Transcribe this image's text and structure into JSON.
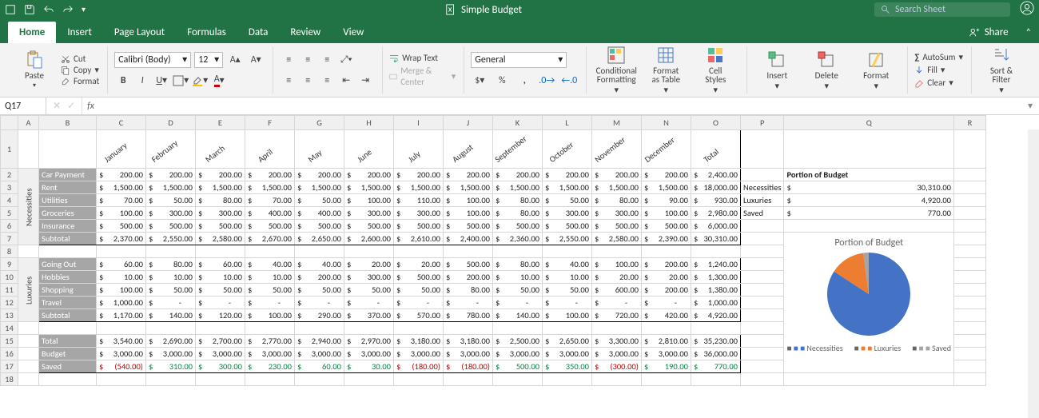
{
  "app": {
    "title": "Simple Budget",
    "search_placeholder": "Search Sheet",
    "active_tab": "Home",
    "tabs": [
      "Home",
      "Insert",
      "Page Layout",
      "Formulas",
      "Data",
      "Review",
      "View"
    ],
    "share_label": "Share",
    "namebox": "Q17",
    "fx": "fx"
  },
  "ribbon": {
    "paste": "Paste",
    "cut": "Cut",
    "copy": "Copy",
    "format": "Format",
    "font_name": "Calibri (Body)",
    "font_size": "12",
    "wrap": "Wrap Text",
    "merge": "Merge & Center",
    "number_format": "General",
    "cond": "Conditional\nFormatting",
    "fmt_table": "Format\nas Table",
    "cell_styles": "Cell\nStyles",
    "insert": "Insert",
    "delete": "Delete",
    "format_btn": "Format",
    "autosum": "AutoSum",
    "fill": "Fill",
    "clear": "Clear",
    "sort": "Sort &\nFilter"
  },
  "months": [
    "January",
    "February",
    "March",
    "April",
    "May",
    "June",
    "July",
    "August",
    "September",
    "October",
    "November",
    "December",
    "Total"
  ],
  "blocks": {
    "necessities_label": "Necessities",
    "luxuries_label": "Luxuries",
    "necessities": [
      {
        "name": "Car Payment",
        "vals": [
          "200.00",
          "200.00",
          "200.00",
          "200.00",
          "200.00",
          "200.00",
          "200.00",
          "200.00",
          "200.00",
          "200.00",
          "200.00",
          "200.00",
          "2,400.00"
        ]
      },
      {
        "name": "Rent",
        "vals": [
          "1,500.00",
          "1,500.00",
          "1,500.00",
          "1,500.00",
          "1,500.00",
          "1,500.00",
          "1,500.00",
          "1,500.00",
          "1,500.00",
          "1,500.00",
          "1,500.00",
          "1,500.00",
          "18,000.00"
        ]
      },
      {
        "name": "Utilities",
        "vals": [
          "70.00",
          "50.00",
          "80.00",
          "70.00",
          "50.00",
          "100.00",
          "110.00",
          "100.00",
          "80.00",
          "50.00",
          "80.00",
          "90.00",
          "930.00"
        ]
      },
      {
        "name": "Groceries",
        "vals": [
          "100.00",
          "300.00",
          "300.00",
          "400.00",
          "400.00",
          "300.00",
          "300.00",
          "100.00",
          "80.00",
          "300.00",
          "300.00",
          "100.00",
          "2,980.00"
        ]
      },
      {
        "name": "Insurance",
        "vals": [
          "500.00",
          "500.00",
          "500.00",
          "500.00",
          "500.00",
          "500.00",
          "500.00",
          "500.00",
          "500.00",
          "500.00",
          "500.00",
          "500.00",
          "6,000.00"
        ]
      }
    ],
    "neces_sub": {
      "name": "Subtotal",
      "vals": [
        "2,370.00",
        "2,550.00",
        "2,580.00",
        "2,670.00",
        "2,650.00",
        "2,600.00",
        "2,610.00",
        "2,400.00",
        "2,360.00",
        "2,550.00",
        "2,580.00",
        "2,390.00",
        "30,310.00"
      ]
    },
    "luxuries": [
      {
        "name": "Going Out",
        "vals": [
          "60.00",
          "80.00",
          "60.00",
          "40.00",
          "40.00",
          "20.00",
          "20.00",
          "500.00",
          "80.00",
          "40.00",
          "100.00",
          "200.00",
          "1,240.00"
        ]
      },
      {
        "name": "Hobbies",
        "vals": [
          "10.00",
          "10.00",
          "10.00",
          "10.00",
          "200.00",
          "300.00",
          "500.00",
          "200.00",
          "10.00",
          "10.00",
          "20.00",
          "20.00",
          "1,300.00"
        ]
      },
      {
        "name": "Shopping",
        "vals": [
          "100.00",
          "50.00",
          "50.00",
          "50.00",
          "50.00",
          "50.00",
          "50.00",
          "80.00",
          "50.00",
          "50.00",
          "600.00",
          "200.00",
          "1,380.00"
        ]
      },
      {
        "name": "Travel",
        "vals": [
          "1,000.00",
          "-",
          "-",
          "-",
          "-",
          "-",
          "-",
          "-",
          "-",
          "-",
          "-",
          "-",
          "1,000.00"
        ]
      }
    ],
    "lux_sub": {
      "name": "Subtotal",
      "vals": [
        "1,170.00",
        "140.00",
        "120.00",
        "100.00",
        "290.00",
        "370.00",
        "570.00",
        "780.00",
        "140.00",
        "100.00",
        "720.00",
        "420.00",
        "4,920.00"
      ]
    },
    "totals": [
      {
        "name": "Total",
        "vals": [
          "3,540.00",
          "2,690.00",
          "2,700.00",
          "2,770.00",
          "2,940.00",
          "2,970.00",
          "3,180.00",
          "3,180.00",
          "2,500.00",
          "2,650.00",
          "3,300.00",
          "2,810.00",
          "35,230.00"
        ]
      },
      {
        "name": "Budget",
        "vals": [
          "3,000.00",
          "3,000.00",
          "3,000.00",
          "3,000.00",
          "3,000.00",
          "3,000.00",
          "3,000.00",
          "3,000.00",
          "3,000.00",
          "3,000.00",
          "3,000.00",
          "3,000.00",
          "36,000.00"
        ]
      }
    ],
    "saved": {
      "name": "Saved",
      "vals": [
        "(540.00)",
        "310.00",
        "300.00",
        "230.00",
        "60.00",
        "30.00",
        "(180.00)",
        "(180.00)",
        "500.00",
        "350.00",
        "(300.00)",
        "190.00",
        "770.00"
      ],
      "neg": [
        true,
        false,
        false,
        false,
        false,
        false,
        true,
        true,
        false,
        false,
        true,
        false,
        false
      ]
    }
  },
  "summary": {
    "title": "Portion of Budget",
    "rows": [
      {
        "k": "Necessities",
        "v": "30,310.00"
      },
      {
        "k": "Luxuries",
        "v": "4,920.00"
      },
      {
        "k": "Saved",
        "v": "770.00"
      }
    ]
  },
  "chart": {
    "title": "Portion of Budget",
    "slices": [
      {
        "label": "Necessities",
        "color": "#4472c4",
        "value": 30310
      },
      {
        "label": "Luxuries",
        "color": "#ed7d31",
        "value": 4920
      },
      {
        "label": "Saved",
        "color": "#a5a5a5",
        "value": 770
      }
    ],
    "background": "#ffffff",
    "radius": 52,
    "legend_fontsize": 10,
    "title_fontsize": 12,
    "title_color": "#666666"
  },
  "col_headers": [
    "",
    "A",
    "B",
    "C",
    "D",
    "E",
    "F",
    "G",
    "H",
    "I",
    "J",
    "K",
    "L",
    "M",
    "N",
    "O",
    "P",
    "Q",
    "R"
  ]
}
